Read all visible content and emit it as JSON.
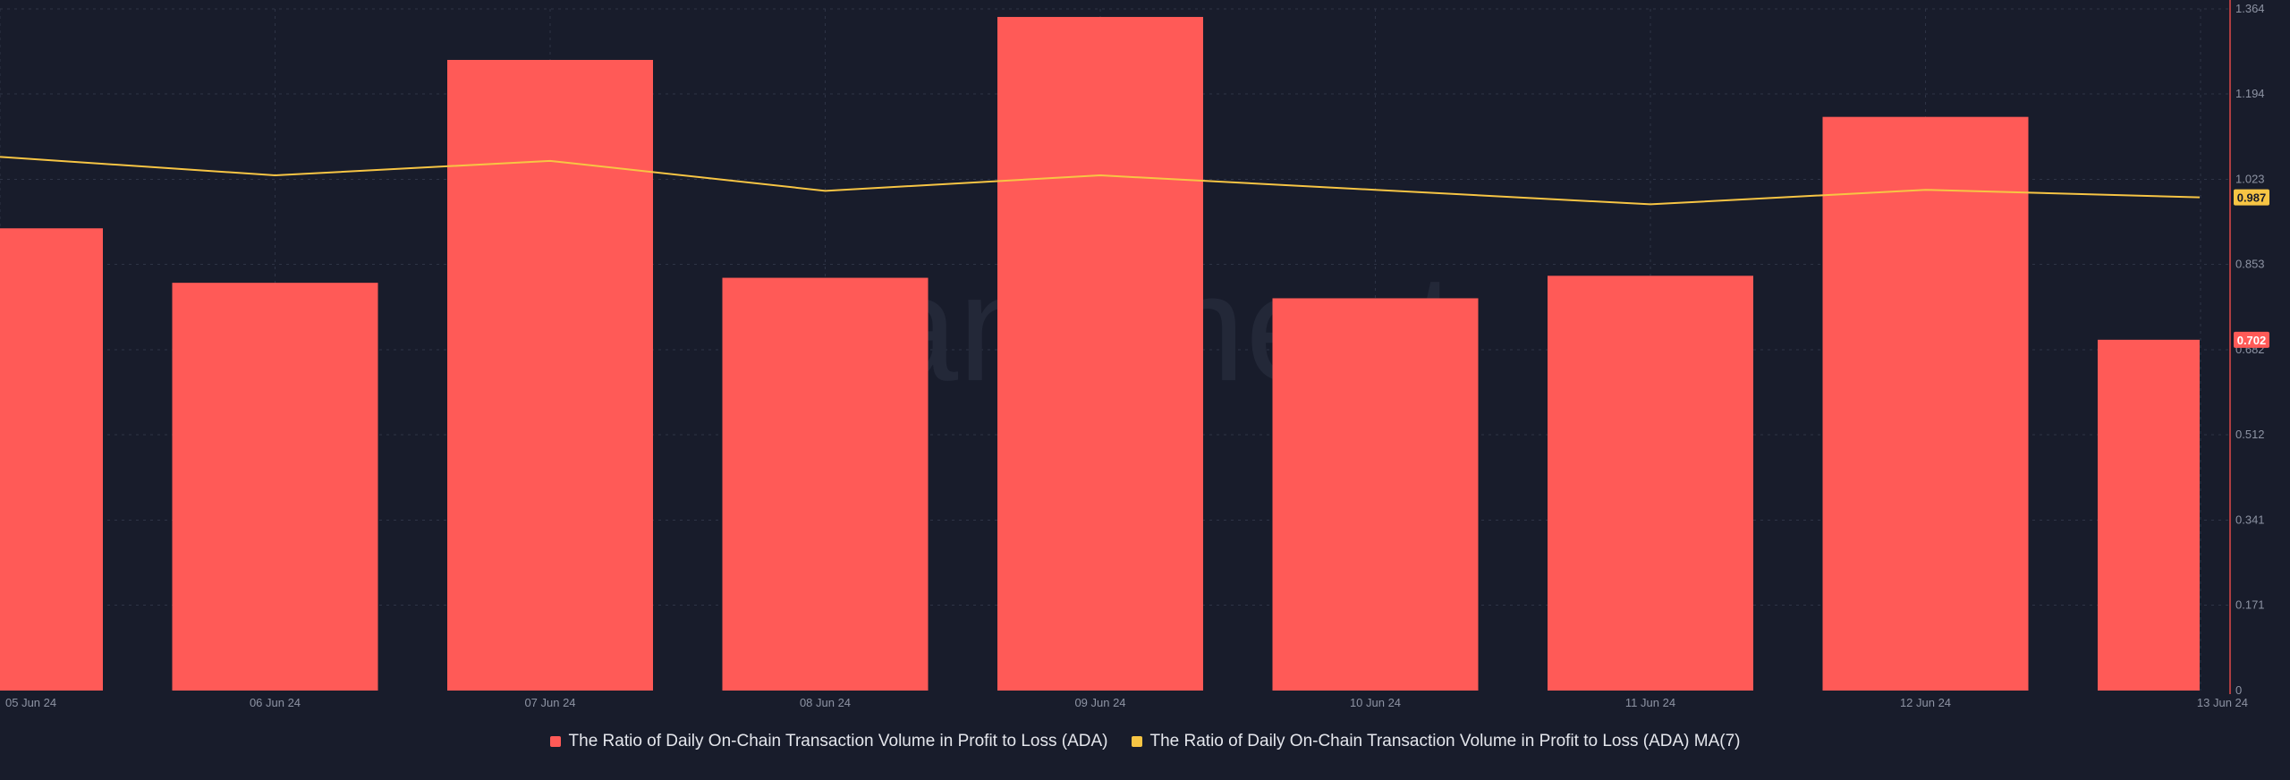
{
  "colors": {
    "background": "#181c2b",
    "bar": "#ff5a57",
    "line": "#f7c544",
    "axis": "#e04848",
    "grid": "#2e3446",
    "tick_text": "#8d93a3",
    "watermark": "#232838"
  },
  "watermark": "santiment",
  "chart_data": {
    "type": "bar",
    "categories": [
      "05 Jun 24",
      "06 Jun 24",
      "07 Jun 24",
      "08 Jun 24",
      "09 Jun 24",
      "10 Jun 24",
      "11 Jun 24",
      "12 Jun 24",
      "13 Jun 24"
    ],
    "x_tick_labels": [
      "05 Jun 24",
      "06 Jun 24",
      "07 Jun 24",
      "08 Jun 24",
      "09 Jun 24",
      "10 Jun 24",
      "11 Jun 24",
      "12 Jun 24",
      "13 Jun 24"
    ],
    "series": [
      {
        "name": "The Ratio of Daily On-Chain Transaction Volume in Profit to Loss (ADA)",
        "type": "bar",
        "color": "#ff5a57",
        "values": [
          0.925,
          0.816,
          1.262,
          0.826,
          1.348,
          0.785,
          0.83,
          1.148,
          0.702
        ]
      },
      {
        "name": "The Ratio of Daily On-Chain Transaction Volume in Profit to Loss (ADA) MA(7)",
        "type": "line",
        "color": "#f7c544",
        "values": [
          1.068,
          1.031,
          1.06,
          1.0,
          1.031,
          1.002,
          0.973,
          1.002,
          0.987
        ]
      }
    ],
    "y_ticks": [
      "0",
      "0.171",
      "0.341",
      "0.512",
      "0.682",
      "0.853",
      "1.023",
      "1.194",
      "1.364"
    ],
    "ylim": [
      0,
      1.364
    ],
    "y_axis_position": "right",
    "grid": true,
    "legend_position": "bottom-center",
    "last_value_labels": [
      {
        "text": "0.987",
        "series": 1
      },
      {
        "text": "0.702",
        "series": 0
      }
    ]
  },
  "legend": {
    "bar_label": "The Ratio of Daily On-Chain Transaction Volume in Profit to Loss (ADA)",
    "line_label": "The Ratio of Daily On-Chain Transaction Volume in Profit to Loss (ADA) MA(7)"
  }
}
